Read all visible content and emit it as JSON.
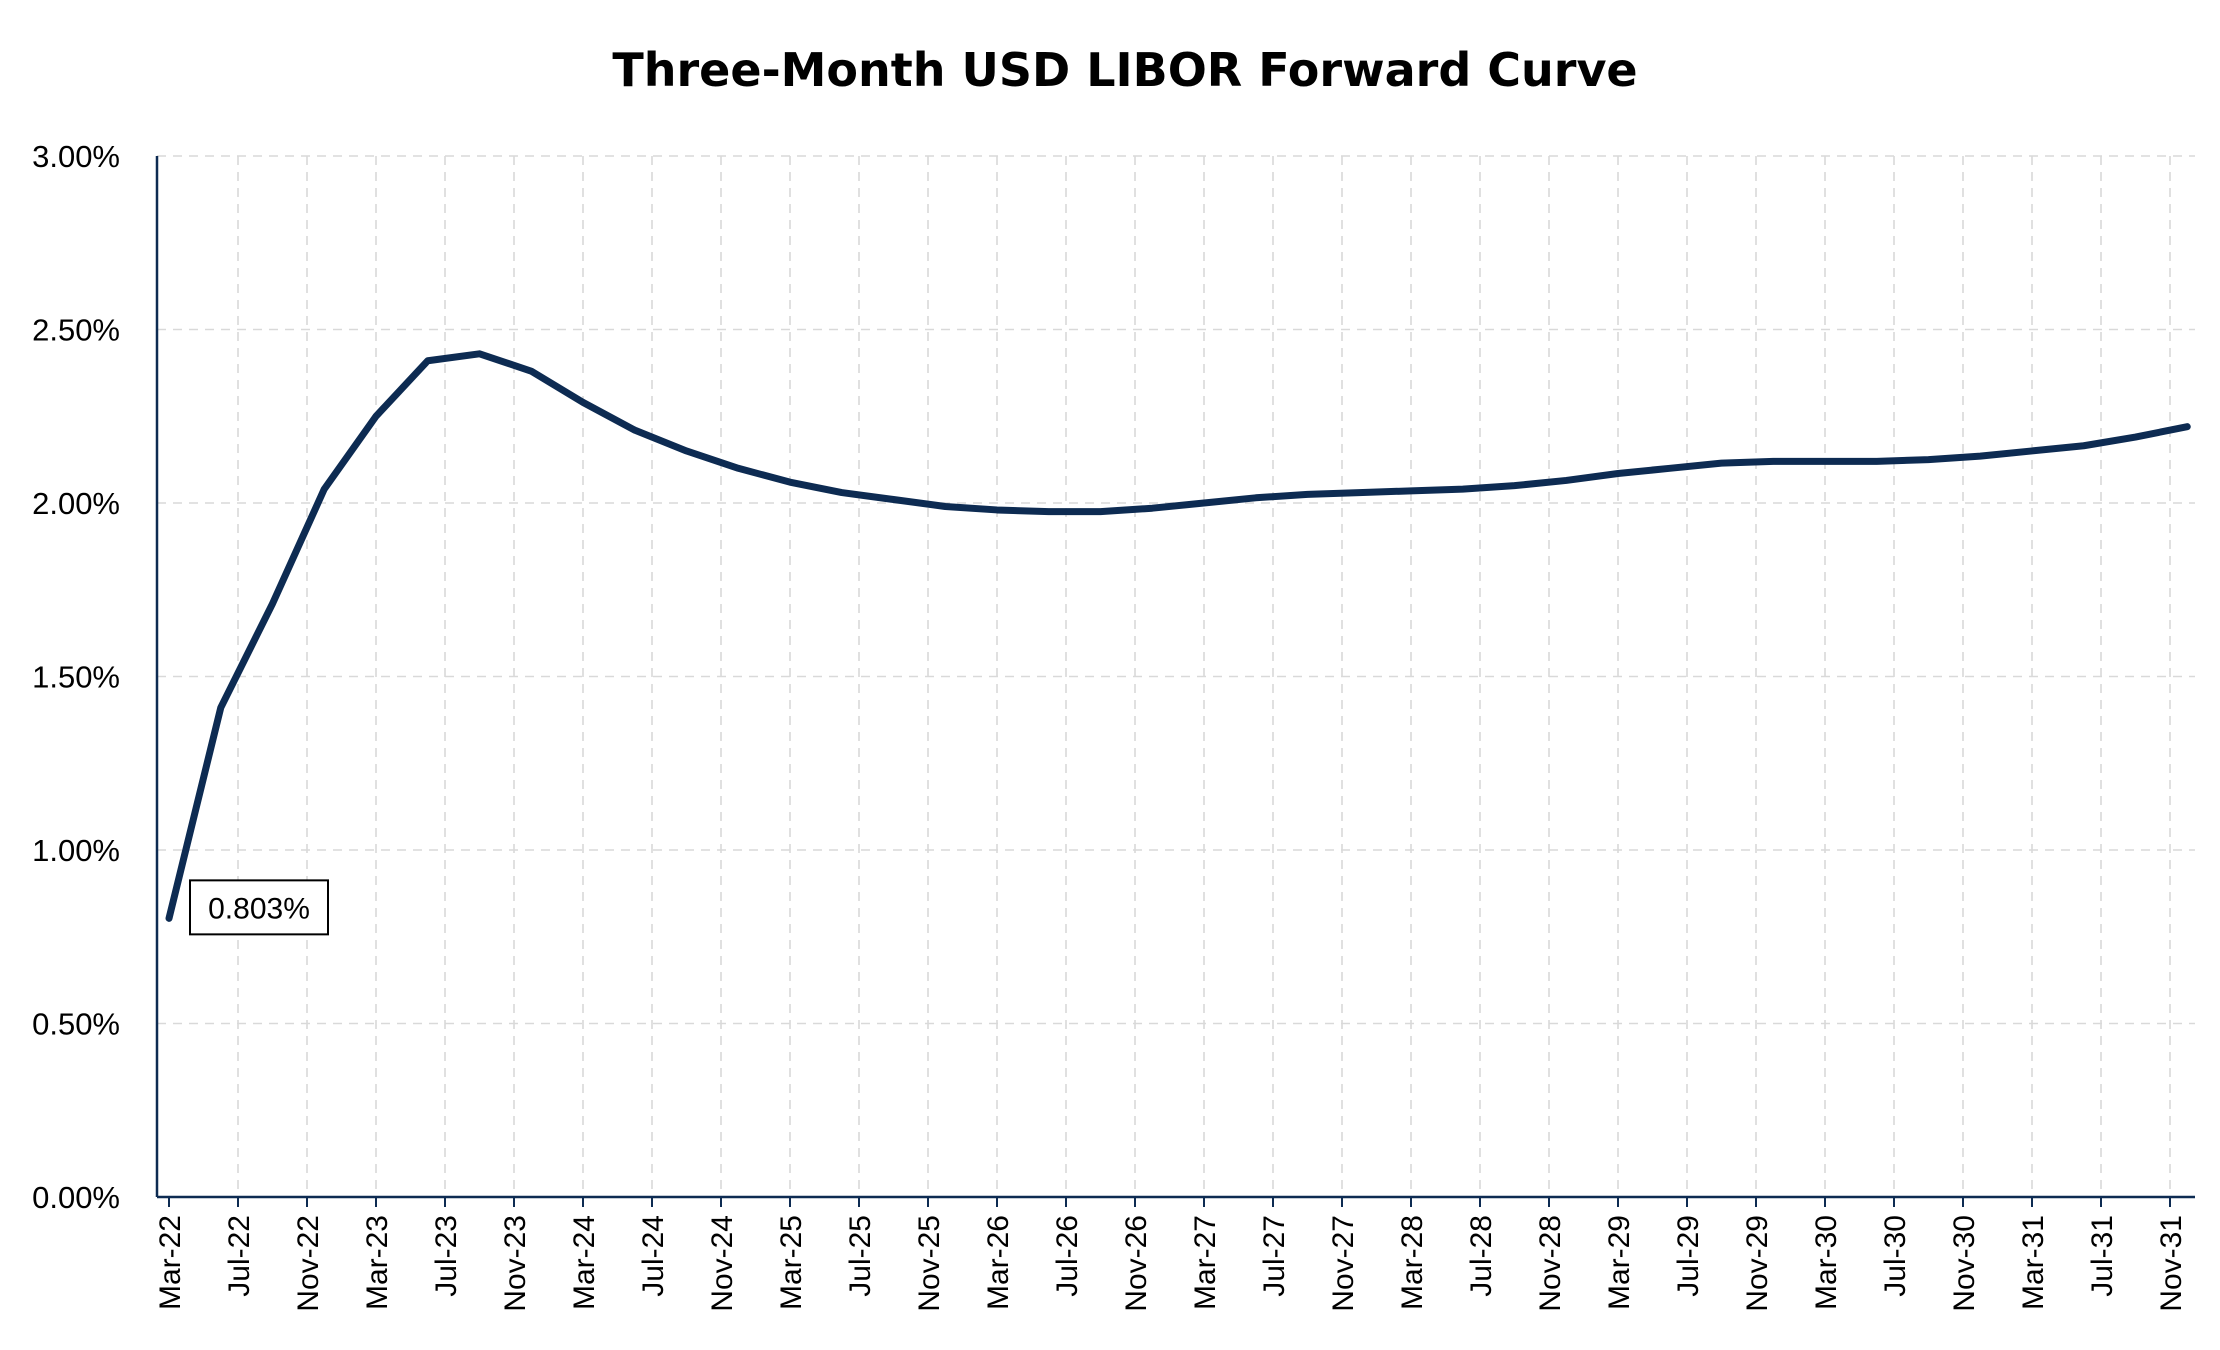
{
  "chart_data": {
    "type": "line",
    "title": "Three-Month USD LIBOR Forward Curve",
    "xlabel": "",
    "ylabel": "",
    "ylim": [
      0,
      3.0
    ],
    "y_ticks": [
      "0.00%",
      "0.50%",
      "1.00%",
      "1.50%",
      "2.00%",
      "2.50%",
      "3.00%"
    ],
    "x_tick_labels": [
      "Mar-22",
      "Jul-22",
      "Nov-22",
      "Mar-23",
      "Jul-23",
      "Nov-23",
      "Mar-24",
      "Jul-24",
      "Nov-24",
      "Mar-25",
      "Jul-25",
      "Nov-25",
      "Mar-26",
      "Jul-26",
      "Nov-26",
      "Mar-27",
      "Jul-27",
      "Nov-27",
      "Mar-28",
      "Jul-28",
      "Nov-28",
      "Mar-29",
      "Jul-29",
      "Nov-29",
      "Mar-30",
      "Jul-30",
      "Nov-30",
      "Mar-31",
      "Jul-31",
      "Nov-31"
    ],
    "grid": true,
    "line_color": "#0d2b52",
    "series": [
      {
        "x": [
          "2022-03",
          "2022-06",
          "2022-09",
          "2022-12",
          "2023-03",
          "2023-06",
          "2023-09",
          "2023-12",
          "2024-03",
          "2024-06",
          "2024-09",
          "2024-12",
          "2025-03",
          "2025-06",
          "2025-09",
          "2025-12",
          "2026-03",
          "2026-06",
          "2026-09",
          "2026-12",
          "2027-03",
          "2027-06",
          "2027-09",
          "2027-12",
          "2028-03",
          "2028-06",
          "2028-09",
          "2028-12",
          "2029-03",
          "2029-06",
          "2029-09",
          "2029-12",
          "2030-03",
          "2030-06",
          "2030-09",
          "2030-12",
          "2031-03",
          "2031-06",
          "2031-09",
          "2031-12"
        ],
        "values": [
          0.803,
          1.41,
          1.71,
          2.04,
          2.25,
          2.41,
          2.43,
          2.38,
          2.29,
          2.21,
          2.15,
          2.1,
          2.06,
          2.03,
          2.01,
          1.99,
          1.98,
          1.975,
          1.975,
          1.985,
          2.0,
          2.015,
          2.025,
          2.03,
          2.035,
          2.04,
          2.05,
          2.065,
          2.085,
          2.1,
          2.115,
          2.12,
          2.12,
          2.12,
          2.125,
          2.135,
          2.15,
          2.165,
          2.19,
          2.22
        ]
      }
    ],
    "annotations": [
      {
        "text": "0.803%",
        "x": "2022-03",
        "y": 0.803
      }
    ]
  }
}
